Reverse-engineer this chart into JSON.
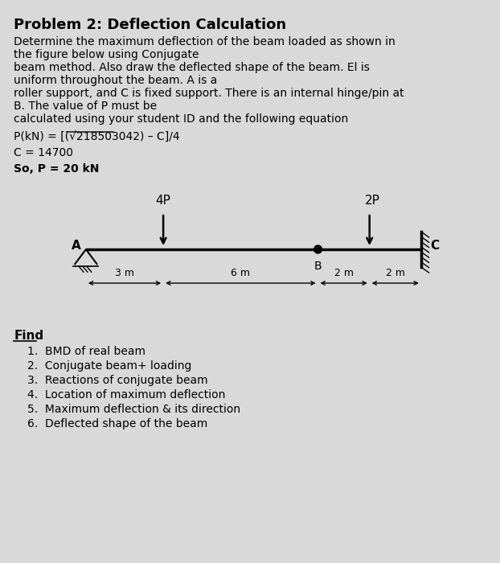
{
  "title": "Problem 2: Deflection Calculation",
  "bg_color": "#d9d9d9",
  "text_color": "#000000",
  "body_text": "Determine the maximum deflection of the beam loaded as shown in\nthe figure below using Conjugate\nbeam method. Also draw the deflected shape of the beam. El is\nuniform throughout the beam. A is a\nroller support, and C is fixed support. There is an internal hinge/pin at\nB. The value of P must be\ncalculated using your student ID and the following equation",
  "equation": "P(kN) = [(√218503042) – C]/4",
  "C_line": "C = 14700",
  "P_line": "So, P = 20 kN",
  "find_label": "Find",
  "find_items": [
    "1.  BMD of real beam",
    "2.  Conjugate beam+ loading",
    "3.  Reactions of conjugate beam",
    "4.  Location of maximum deflection",
    "5.  Maximum deflection & its direction",
    "6.  Deflected shape of the beam"
  ],
  "load_4P_label": "4P",
  "load_2P_label": "2P",
  "dim_3m": "3 m",
  "dim_6m": "6 m",
  "dim_2m_1": "2 m",
  "dim_2m_2": "2 m",
  "point_A": "A",
  "point_B": "B",
  "point_C": "C"
}
